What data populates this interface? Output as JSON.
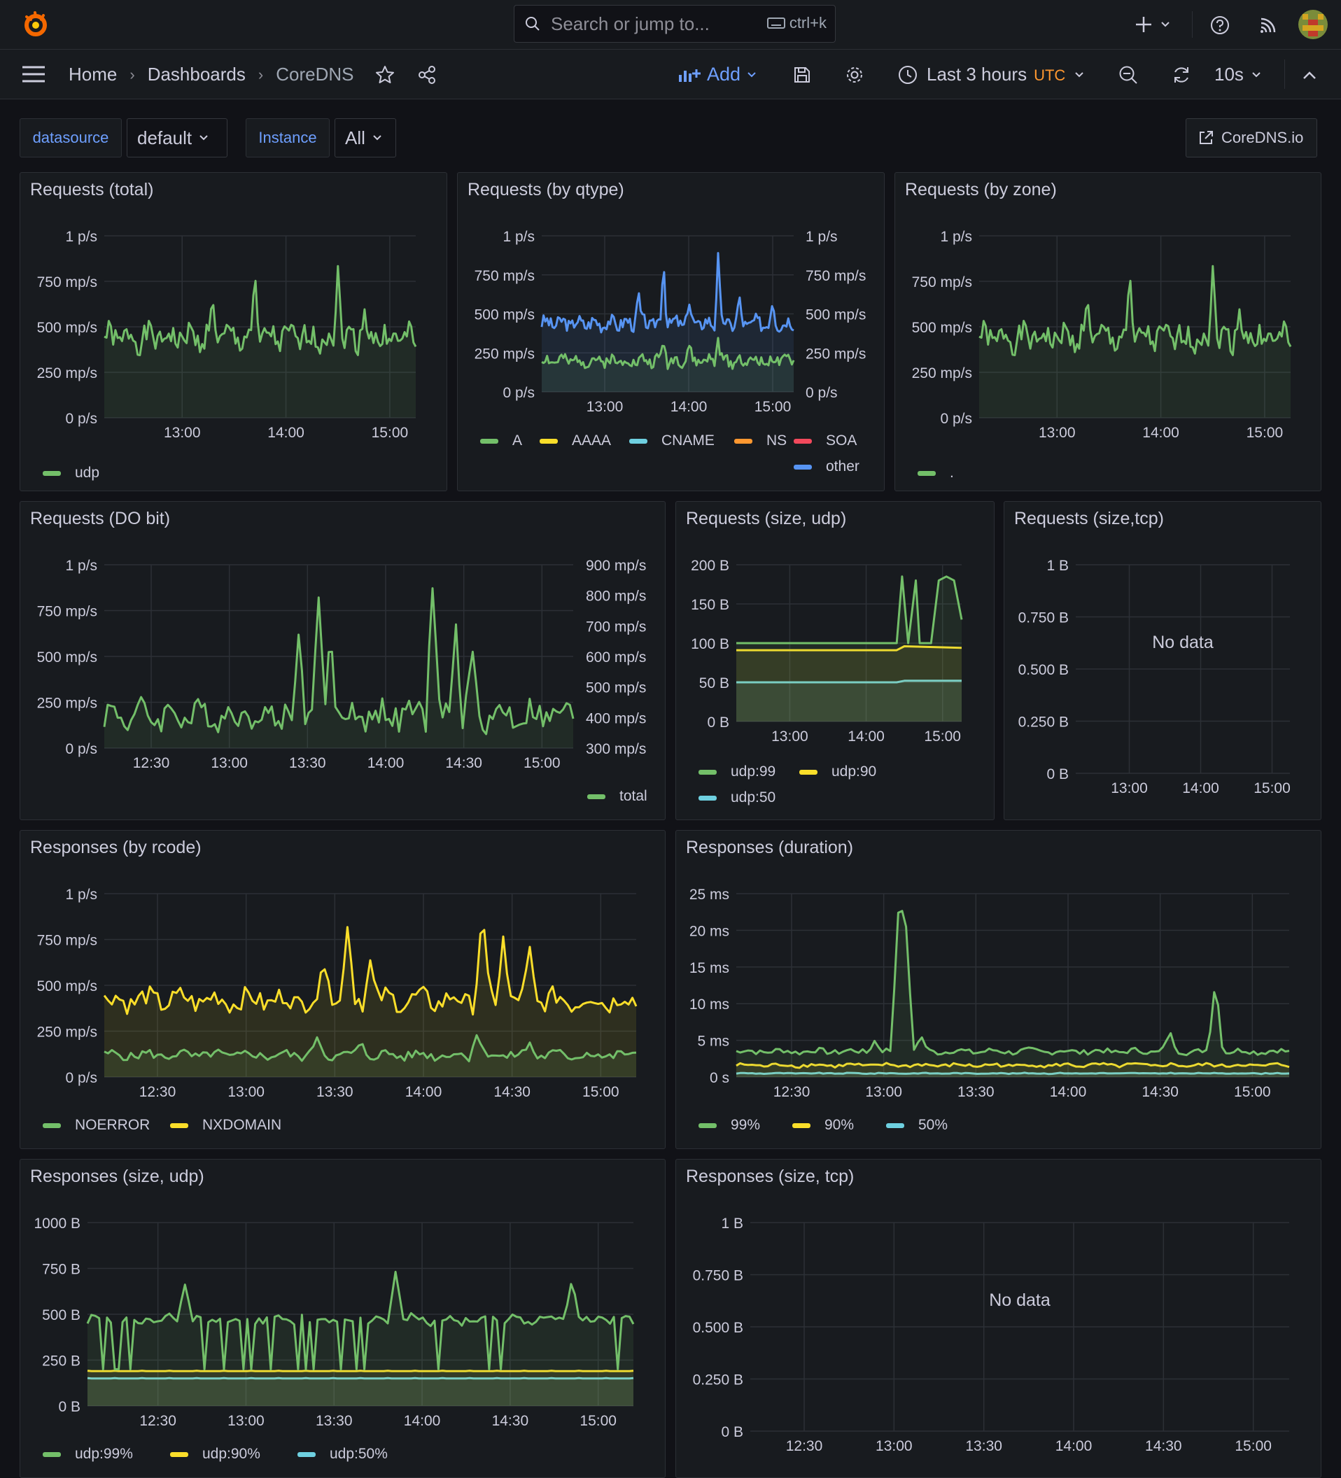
{
  "search": {
    "placeholder": "Search or jump to...",
    "shortcut": "ctrl+k"
  },
  "breadcrumb": [
    "Home",
    "Dashboards",
    "CoreDNS"
  ],
  "toolbar": {
    "add_label": "Add",
    "time_range": "Last 3 hours",
    "timezone": "UTC",
    "refresh": "10s"
  },
  "variables": {
    "datasource_label": "datasource",
    "datasource_value": "default",
    "instance_label": "Instance",
    "instance_value": "All"
  },
  "link_button": "CoreDNS.io",
  "colors": {
    "green": "#73bf69",
    "yellow": "#fade2a",
    "cyan": "#8ab8ff",
    "lightblue": "#6ed0e0",
    "orange": "#ff9830",
    "red": "#f2495c",
    "blue": "#5794f2"
  },
  "panels": {
    "p1": {
      "title": "Requests (total)"
    },
    "p2": {
      "title": "Requests (by qtype)"
    },
    "p3": {
      "title": "Requests (by zone)"
    },
    "p4": {
      "title": "Requests (DO bit)"
    },
    "p5": {
      "title": "Requests (size, udp)"
    },
    "p6": {
      "title": "Requests (size,tcp)"
    },
    "p7": {
      "title": "Responses (by rcode)"
    },
    "p8": {
      "title": "Responses (duration)"
    },
    "p9": {
      "title": "Responses (size, udp)"
    },
    "p10": {
      "title": "Responses (size, tcp)"
    }
  },
  "chart_data": [
    {
      "id": "p1",
      "type": "area",
      "title": "Requests (total)",
      "ylabels": [
        "0 p/s",
        "250 mp/s",
        "500 mp/s",
        "750 mp/s",
        "1 p/s"
      ],
      "ylim": [
        0,
        1000
      ],
      "xlabels": [
        "13:00",
        "14:00",
        "15:00"
      ],
      "xrange": [
        12.25,
        15.25
      ],
      "series": [
        {
          "name": "udp",
          "color": "#73bf69",
          "seed": 1,
          "base": 440,
          "amp": 110,
          "spikes": [
            [
              13.7,
              320
            ],
            [
              14.5,
              400
            ],
            [
              13.3,
              200
            ],
            [
              14.75,
              180
            ]
          ]
        }
      ]
    },
    {
      "id": "p2",
      "type": "area",
      "title": "Requests (by qtype)",
      "ylabels": [
        "0 p/s",
        "250 mp/s",
        "500 mp/s",
        "750 mp/s",
        "1 p/s"
      ],
      "ylim": [
        0,
        1000
      ],
      "right_ylabels": [
        "0 p/s",
        "250 mp/s",
        "500 mp/s",
        "750 mp/s",
        "1 p/s"
      ],
      "xlabels": [
        "13:00",
        "14:00",
        "15:00"
      ],
      "xrange": [
        12.25,
        15.25
      ],
      "legend": [
        "A",
        "AAAA",
        "CNAME",
        "NS",
        "SOA",
        "other"
      ],
      "series": [
        {
          "name": "A",
          "color": "#73bf69",
          "seed": 2,
          "base": 200,
          "amp": 60,
          "spikes": [
            [
              13.7,
              150
            ],
            [
              14.35,
              140
            ],
            [
              14.0,
              100
            ]
          ]
        },
        {
          "name": "AAAA",
          "color": "#fade2a"
        },
        {
          "name": "CNAME",
          "color": "#6ed0e0"
        },
        {
          "name": "NS",
          "color": "#ff9830"
        },
        {
          "name": "SOA",
          "color": "#f2495c"
        },
        {
          "name": "other",
          "color": "#5794f2",
          "seed": 3,
          "base": 440,
          "amp": 70,
          "spikes": [
            [
              13.7,
              420
            ],
            [
              14.35,
              430
            ],
            [
              13.4,
              200
            ],
            [
              14.0,
              150
            ],
            [
              14.6,
              150
            ],
            [
              15.0,
              140
            ]
          ]
        }
      ]
    },
    {
      "id": "p3",
      "type": "area",
      "title": "Requests (by zone)",
      "ylabels": [
        "0 p/s",
        "250 mp/s",
        "500 mp/s",
        "750 mp/s",
        "1 p/s"
      ],
      "ylim": [
        0,
        1000
      ],
      "xlabels": [
        "13:00",
        "14:00",
        "15:00"
      ],
      "xrange": [
        12.25,
        15.25
      ],
      "legend": [
        "."
      ],
      "series": [
        {
          "name": ".",
          "color": "#73bf69",
          "seed": 1,
          "base": 440,
          "amp": 110,
          "spikes": [
            [
              13.7,
              320
            ],
            [
              14.5,
              400
            ],
            [
              13.3,
              200
            ],
            [
              14.75,
              180
            ]
          ]
        }
      ]
    },
    {
      "id": "p4",
      "type": "area",
      "title": "Requests (DO bit)",
      "ylabels": [
        "0 p/s",
        "250 mp/s",
        "500 mp/s",
        "750 mp/s",
        "1 p/s"
      ],
      "ylim": [
        0,
        1000
      ],
      "right_ylabels": [
        "300 mp/s",
        "400 mp/s",
        "500 mp/s",
        "600 mp/s",
        "700 mp/s",
        "800 mp/s",
        "900 mp/s"
      ],
      "xlabels": [
        "12:30",
        "13:00",
        "13:30",
        "14:00",
        "14:30",
        "15:00"
      ],
      "xrange": [
        12.2,
        15.2
      ],
      "legend": [
        "total"
      ],
      "series": [
        {
          "name": "total",
          "color": "#73bf69",
          "seed": 4,
          "base": 180,
          "amp": 120,
          "spikes": [
            [
              13.57,
              700
            ],
            [
              14.3,
              780
            ],
            [
              13.45,
              480
            ],
            [
              14.45,
              500
            ],
            [
              13.65,
              420
            ],
            [
              14.55,
              330
            ]
          ]
        }
      ]
    },
    {
      "id": "p5",
      "type": "area",
      "title": "Requests (size, udp)",
      "ylabels": [
        "0 B",
        "50 B",
        "100 B",
        "150 B",
        "200 B"
      ],
      "ylim": [
        0,
        200
      ],
      "xlabels": [
        "13:00",
        "14:00",
        "15:00"
      ],
      "xrange": [
        12.3,
        15.25
      ],
      "legend": [
        "udp:99",
        "udp:90",
        "udp:50"
      ],
      "series": [
        {
          "name": "udp:99",
          "color": "#73bf69",
          "flat": 100,
          "tail": [
            [
              14.4,
              100
            ],
            [
              14.47,
              185
            ],
            [
              14.55,
              100
            ],
            [
              14.65,
              180
            ],
            [
              14.7,
              100
            ],
            [
              14.85,
              100
            ],
            [
              14.95,
              180
            ],
            [
              15.05,
              185
            ],
            [
              15.15,
              180
            ],
            [
              15.25,
              130
            ]
          ]
        },
        {
          "name": "udp:90",
          "color": "#fade2a",
          "flat": 91,
          "tail": [
            [
              14.4,
              91
            ],
            [
              14.5,
              96
            ],
            [
              15.25,
              94
            ]
          ]
        },
        {
          "name": "udp:50",
          "color": "#6ed0e0",
          "flat": 50,
          "tail": [
            [
              14.4,
              50
            ],
            [
              14.5,
              52
            ],
            [
              15.25,
              52
            ]
          ]
        }
      ]
    },
    {
      "id": "p6",
      "type": "empty",
      "title": "Requests (size,tcp)",
      "ylabels": [
        "0 B",
        "0.250 B",
        "0.500 B",
        "0.750 B",
        "1 B"
      ],
      "xlabels": [
        "13:00",
        "14:00",
        "15:00"
      ],
      "xrange": [
        12.25,
        15.25
      ],
      "message": "No data"
    },
    {
      "id": "p7",
      "type": "area",
      "title": "Responses (by rcode)",
      "ylabels": [
        "0 p/s",
        "250 mp/s",
        "500 mp/s",
        "750 mp/s",
        "1 p/s"
      ],
      "ylim": [
        0,
        1000
      ],
      "xlabels": [
        "12:30",
        "13:00",
        "13:30",
        "14:00",
        "14:30",
        "15:00"
      ],
      "xrange": [
        12.2,
        15.2
      ],
      "legend": [
        "NOERROR",
        "NXDOMAIN"
      ],
      "series": [
        {
          "name": "NOERROR",
          "color": "#73bf69",
          "seed": 5,
          "base": 120,
          "amp": 40,
          "spikes": [
            [
              13.4,
              100
            ],
            [
              14.3,
              130
            ],
            [
              13.65,
              60
            ],
            [
              14.6,
              60
            ]
          ]
        },
        {
          "name": "NXDOMAIN",
          "color": "#fade2a",
          "seed": 6,
          "base": 420,
          "amp": 90,
          "spikes": [
            [
              13.57,
              420
            ],
            [
              14.33,
              480
            ],
            [
              13.45,
              260
            ],
            [
              14.45,
              350
            ],
            [
              14.6,
              250
            ],
            [
              13.7,
              220
            ]
          ]
        }
      ]
    },
    {
      "id": "p8",
      "type": "area",
      "title": "Responses (duration)",
      "ylabels": [
        "0 s",
        "5 ms",
        "10 ms",
        "15 ms",
        "20 ms",
        "25 ms"
      ],
      "ylim": [
        0,
        25
      ],
      "xlabels": [
        "12:30",
        "13:00",
        "13:30",
        "14:00",
        "14:30",
        "15:00"
      ],
      "xrange": [
        12.2,
        15.2
      ],
      "legend": [
        "99%",
        "90%",
        "50%"
      ],
      "series": [
        {
          "name": "99%",
          "color": "#73bf69",
          "seed": 7,
          "base": 3.5,
          "amp": 0.6,
          "spikes": [
            [
              13.08,
              20
            ],
            [
              13.12,
              18
            ],
            [
              14.8,
              10
            ],
            [
              14.55,
              2.5
            ],
            [
              12.95,
              1.5
            ],
            [
              13.2,
              2
            ]
          ]
        },
        {
          "name": "90%",
          "color": "#fade2a",
          "seed": 8,
          "base": 1.6,
          "amp": 0.4,
          "spikes": []
        },
        {
          "name": "50%",
          "color": "#6ed0e0",
          "seed": 9,
          "base": 0.5,
          "amp": 0.1,
          "spikes": []
        }
      ]
    },
    {
      "id": "p9",
      "type": "area",
      "title": "Responses (size, udp)",
      "ylabels": [
        "0 B",
        "250 B",
        "500 B",
        "750 B",
        "1000 B"
      ],
      "ylim": [
        0,
        1000
      ],
      "xlabels": [
        "12:30",
        "13:00",
        "13:30",
        "14:00",
        "14:30",
        "15:00"
      ],
      "xrange": [
        12.1,
        15.2
      ],
      "legend": [
        "udp:99%",
        "udp:90%",
        "udp:50%"
      ],
      "series": [
        {
          "name": "udp:99%",
          "color": "#73bf69",
          "seed": 10,
          "base": 470,
          "amp": 40,
          "dips": true,
          "spikes": [
            [
              12.65,
              230
            ],
            [
              13.85,
              300
            ],
            [
              14.85,
              250
            ]
          ]
        },
        {
          "name": "udp:90%",
          "color": "#fade2a",
          "flat": 190
        },
        {
          "name": "udp:50%",
          "color": "#6ed0e0",
          "flat": 150
        }
      ]
    },
    {
      "id": "p10",
      "type": "empty",
      "title": "Responses (size, tcp)",
      "ylabels": [
        "0 B",
        "0.250 B",
        "0.500 B",
        "0.750 B",
        "1 B"
      ],
      "xlabels": [
        "12:30",
        "13:00",
        "13:30",
        "14:00",
        "14:30",
        "15:00"
      ],
      "xrange": [
        12.2,
        15.2
      ],
      "message": "No data"
    }
  ]
}
